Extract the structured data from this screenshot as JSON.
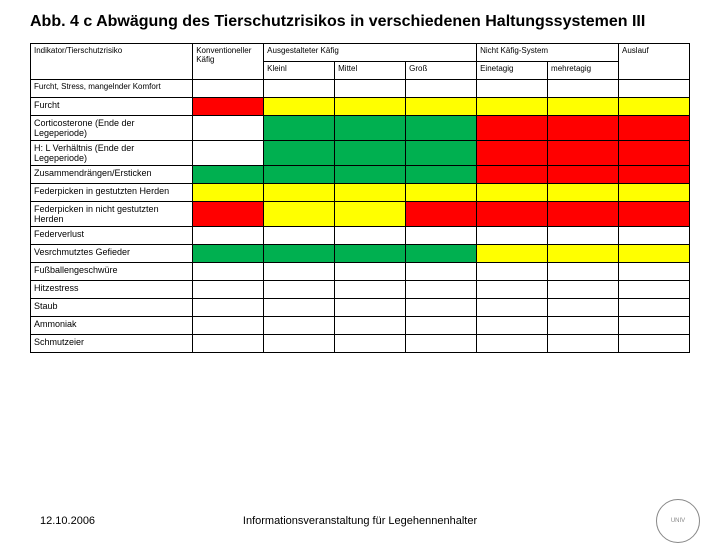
{
  "title": "Abb. 4 c Abwägung des Tierschutzrisikos in verschiedenen Haltungssystemen III",
  "colors": {
    "red": "#ff0000",
    "yellow": "#ffff00",
    "green": "#00b050",
    "none": "#ffffff"
  },
  "headers": {
    "indicator": "Indikator/Tierschutzrisiko",
    "conv": "Konventioneller Käfig",
    "furnished": "Ausgestalteter Käfig",
    "noncage": "Nicht Käfig-System",
    "range": "Auslauf",
    "small": "Kleinl",
    "medium": "Mittel",
    "large": "Groß",
    "single": "Einetagig",
    "multi": "mehretagig"
  },
  "section": "Furcht, Stress, mangelnder Komfort",
  "rows": [
    {
      "label": "Furcht",
      "cells": [
        "red",
        "yellow",
        "yellow",
        "yellow",
        "yellow",
        "yellow",
        "yellow"
      ]
    },
    {
      "label": "Corticosterone (Ende der Legeperiode)",
      "cells": [
        "none",
        "green",
        "green",
        "green",
        "red",
        "red",
        "red"
      ]
    },
    {
      "label": "H: L Verhältnis (Ende der Legeperiode)",
      "cells": [
        "none",
        "green",
        "green",
        "green",
        "red",
        "red",
        "red"
      ]
    },
    {
      "label": "Zusammendrängen/Ersticken",
      "cells": [
        "green",
        "green",
        "green",
        "green",
        "red",
        "red",
        "red"
      ]
    },
    {
      "label": "Federpicken in gestutzten Herden",
      "cells": [
        "yellow",
        "yellow",
        "yellow",
        "yellow",
        "yellow",
        "yellow",
        "yellow"
      ]
    },
    {
      "label": "Federpicken in nicht gestutzten Herden",
      "cells": [
        "red",
        "yellow",
        "yellow",
        "red",
        "red",
        "red",
        "red"
      ]
    },
    {
      "label": "Federverlust",
      "cells": [
        "none",
        "none",
        "none",
        "none",
        "none",
        "none",
        "none"
      ]
    },
    {
      "label": "Vesrchmutztes Gefieder",
      "cells": [
        "green",
        "green",
        "green",
        "green",
        "yellow",
        "yellow",
        "yellow"
      ]
    },
    {
      "label": "Fußballengeschwüre",
      "cells": [
        "none",
        "none",
        "none",
        "none",
        "none",
        "none",
        "none"
      ]
    },
    {
      "label": "Hitzestress",
      "cells": [
        "none",
        "none",
        "none",
        "none",
        "none",
        "none",
        "none"
      ]
    },
    {
      "label": "Staub",
      "cells": [
        "none",
        "none",
        "none",
        "none",
        "none",
        "none",
        "none"
      ]
    },
    {
      "label": "Ammoniak",
      "cells": [
        "none",
        "none",
        "none",
        "none",
        "none",
        "none",
        "none"
      ]
    },
    {
      "label": "Schmutzeier",
      "cells": [
        "none",
        "none",
        "none",
        "none",
        "none",
        "none",
        "none"
      ]
    }
  ],
  "footer": {
    "date": "12.10.2006",
    "center": "Informationsveranstaltung für Legehennenhalter",
    "logo": "UNIV"
  }
}
